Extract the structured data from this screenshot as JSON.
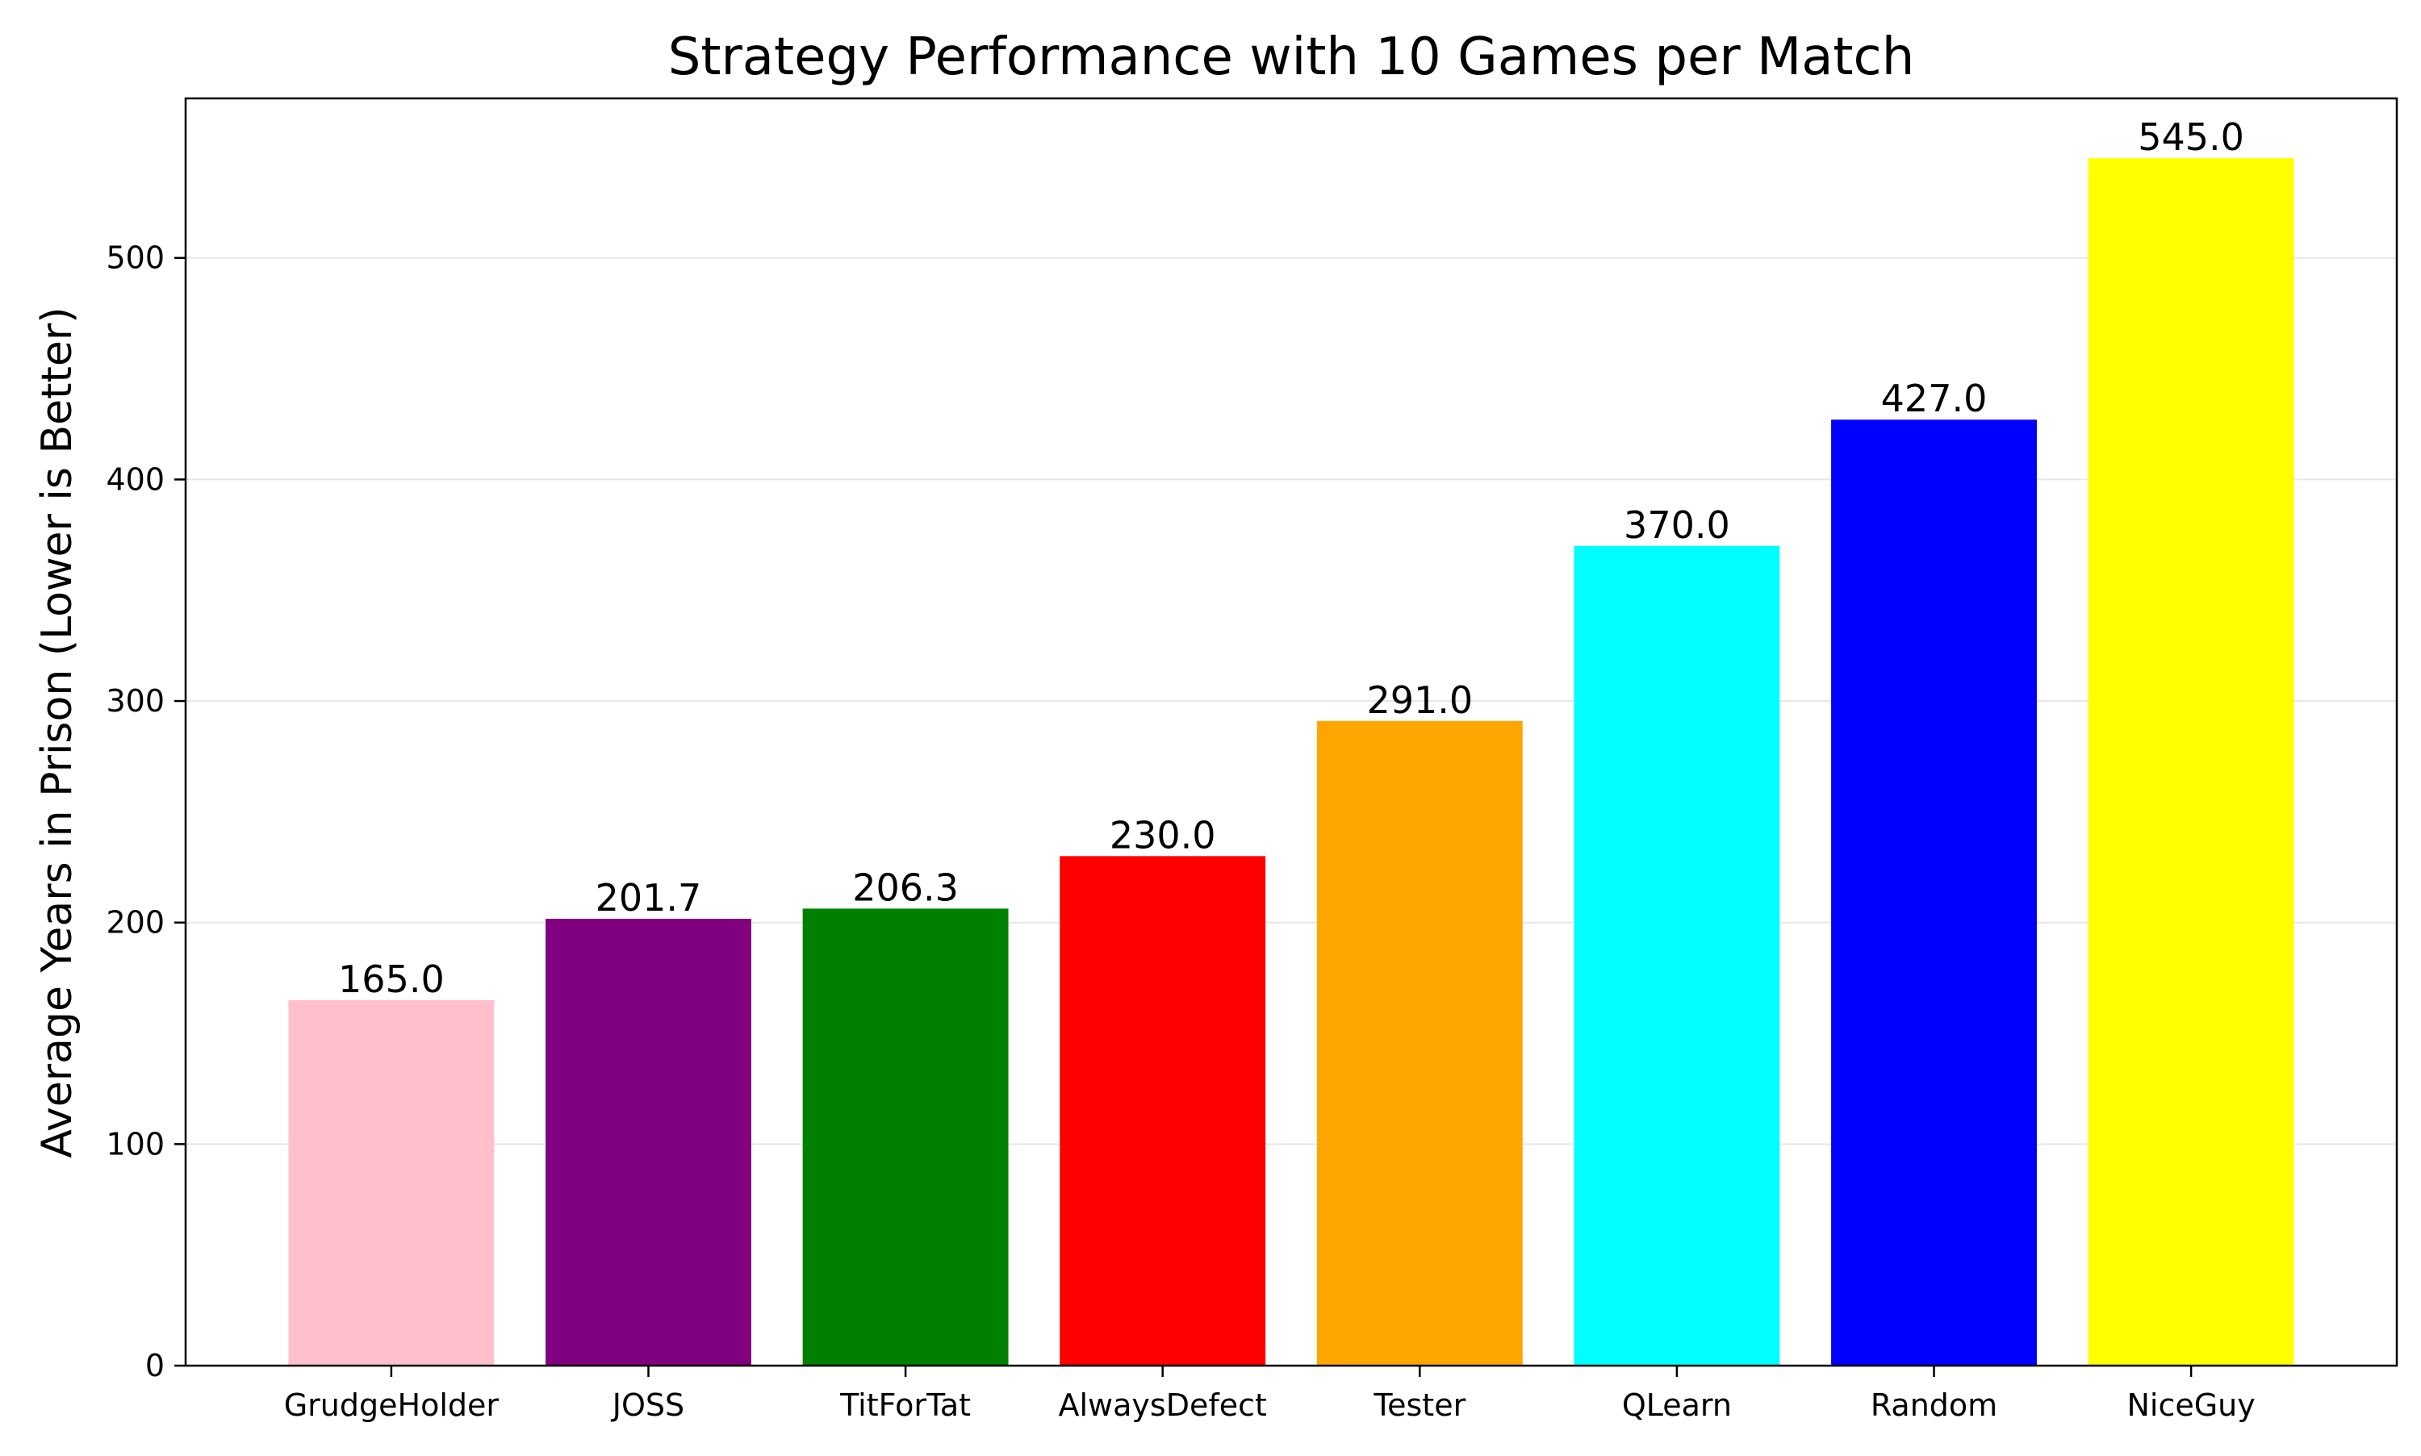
{
  "chart_data": {
    "type": "bar",
    "title": "Strategy Performance with 10 Games per Match",
    "xlabel": "",
    "ylabel": "Average Years in Prison (Lower is Better)",
    "categories": [
      "GrudgeHolder",
      "JOSS",
      "TitForTat",
      "AlwaysDefect",
      "Tester",
      "QLearn",
      "Random",
      "NiceGuy"
    ],
    "values": [
      165.0,
      201.7,
      206.3,
      230.0,
      291.0,
      370.0,
      427.0,
      545.0
    ],
    "value_labels": [
      "165.0",
      "201.7",
      "206.3",
      "230.0",
      "291.0",
      "370.0",
      "427.0",
      "545.0"
    ],
    "colors": [
      "#ffc0cb",
      "#800080",
      "#008000",
      "#ff0000",
      "#ffa500",
      "#00ffff",
      "#0000ff",
      "#ffff00"
    ],
    "ylim": [
      0,
      572
    ],
    "yticks": [
      0,
      100,
      200,
      300,
      400,
      500
    ],
    "ytick_labels": [
      "0",
      "100",
      "200",
      "300",
      "400",
      "500"
    ],
    "grid": "y-major",
    "legend": "none"
  }
}
